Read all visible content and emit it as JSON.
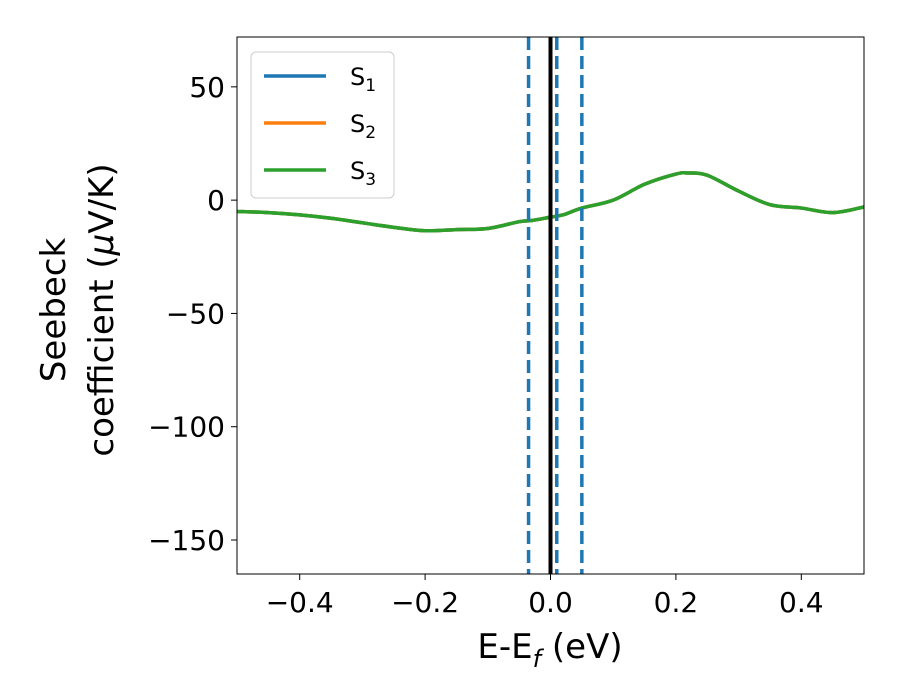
{
  "chart_data": {
    "type": "line",
    "xlabel": "E-E",
    "xlabel_sub": "f",
    "xlabel_unit": " (eV)",
    "ylabel_line1": "Seebeck",
    "ylabel_line2_prefix": "coefficient  (",
    "ylabel_line2_mu": "μ",
    "ylabel_line2_suffix": "V/K)",
    "xlim": [
      -0.5,
      0.5
    ],
    "ylim": [
      -165,
      72
    ],
    "xticks": [
      -0.4,
      -0.2,
      0.0,
      0.2,
      0.4
    ],
    "xtick_labels": [
      "−0.4",
      "−0.2",
      "0.0",
      "0.2",
      "0.4"
    ],
    "yticks": [
      50,
      0,
      -50,
      -100,
      -150
    ],
    "ytick_labels": [
      "50",
      "0",
      "−50",
      "−100",
      "−150"
    ],
    "legend_position": "upper-left",
    "series": [
      {
        "name": "S",
        "sub": "1",
        "color": "#1f77b4",
        "x": [
          -0.5,
          -0.45,
          -0.4,
          -0.35,
          -0.3,
          -0.25,
          -0.2,
          -0.15,
          -0.1,
          -0.05,
          -0.03,
          0.0,
          0.02,
          0.05,
          0.1,
          0.15,
          0.2,
          0.22,
          0.25,
          0.3,
          0.35,
          0.4,
          0.45,
          0.5
        ],
        "y": [
          -5,
          -5.5,
          -6.5,
          -8,
          -10,
          -12,
          -13.5,
          -13,
          -12.5,
          -9.5,
          -9,
          -7.5,
          -6.5,
          -3.5,
          0,
          7,
          11.5,
          12,
          11,
          4,
          -2,
          -3.5,
          -5.5,
          -3
        ]
      },
      {
        "name": "S",
        "sub": "2",
        "color": "#ff7f0e",
        "x": [
          -0.5,
          -0.45,
          -0.4,
          -0.35,
          -0.3,
          -0.25,
          -0.2,
          -0.15,
          -0.1,
          -0.05,
          -0.03,
          0.0,
          0.02,
          0.05,
          0.1,
          0.15,
          0.2,
          0.22,
          0.25,
          0.3,
          0.35,
          0.4,
          0.45,
          0.5
        ],
        "y": [
          -5,
          -5.5,
          -6.5,
          -8,
          -10,
          -12,
          -13.5,
          -13,
          -12.5,
          -9.5,
          -9,
          -7.5,
          -6.5,
          -3.5,
          0,
          7,
          11.5,
          12,
          11,
          4,
          -2,
          -3.5,
          -5.5,
          -3
        ]
      },
      {
        "name": "S",
        "sub": "3",
        "color": "#2ca02c",
        "x": [
          -0.5,
          -0.45,
          -0.4,
          -0.35,
          -0.3,
          -0.25,
          -0.2,
          -0.15,
          -0.1,
          -0.05,
          -0.03,
          0.0,
          0.02,
          0.05,
          0.1,
          0.15,
          0.2,
          0.22,
          0.25,
          0.3,
          0.35,
          0.4,
          0.45,
          0.5
        ],
        "y": [
          -5,
          -5.5,
          -6.5,
          -8,
          -10,
          -12,
          -13.5,
          -13,
          -12.5,
          -9.5,
          -9,
          -7.5,
          -6.5,
          -3.5,
          0,
          7,
          11.5,
          12,
          11,
          4,
          -2,
          -3.5,
          -5.5,
          -3
        ]
      }
    ],
    "vlines": [
      {
        "x": 0.0,
        "style": "solid",
        "color": "#000000"
      },
      {
        "x": -0.035,
        "style": "dashed",
        "color": "#1f77b4"
      },
      {
        "x": 0.01,
        "style": "dashed",
        "color": "#1f77b4"
      },
      {
        "x": 0.05,
        "style": "dashed",
        "color": "#1f77b4"
      }
    ]
  }
}
